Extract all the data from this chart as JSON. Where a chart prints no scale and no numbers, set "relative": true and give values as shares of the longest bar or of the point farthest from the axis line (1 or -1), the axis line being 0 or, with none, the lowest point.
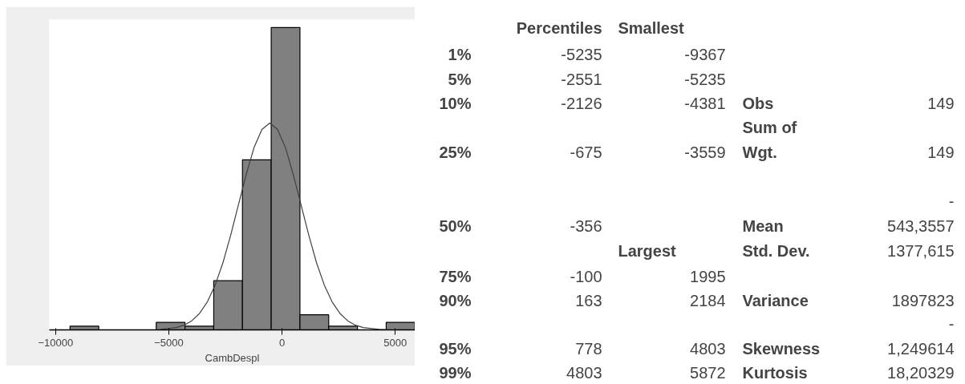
{
  "chart_data": [
    {
      "type": "histogram",
      "relative": true,
      "xlabel": "CambDespl",
      "color": "#808080",
      "bins": [
        -9367,
        -8097,
        -6827,
        -5557,
        -4287,
        -3017,
        -1748,
        -478,
        792,
        2062,
        3332,
        4602,
        5872
      ],
      "values": [
        0.0125,
        0,
        0,
        0.025,
        0.0125,
        0.1625,
        0.5625,
        1,
        0.05,
        0.0125,
        0,
        0.025
      ],
      "xlim": [
        -10280,
        5880
      ],
      "xticks": [
        -10000,
        -5000,
        0,
        5000
      ],
      "annotations": [
        "0"
      ],
      "series": [
        {
          "type": "line",
          "color": "#404040",
          "x": [
            -5366,
            -4677,
            -4333,
            -3988,
            -3644,
            -3299,
            -2955,
            -2610,
            -2266,
            -1921,
            -1577,
            -1232,
            -888,
            -543,
            -198,
            146,
            491,
            835,
            1180,
            1524,
            1869,
            2213,
            2558,
            2902,
            3247,
            3591,
            4280,
            4625
          ],
          "values": [
            0.0015,
            0.0076,
            0.0155,
            0.03,
            0.0545,
            0.0926,
            0.148,
            0.222,
            0.314,
            0.415,
            0.515,
            0.604,
            0.663,
            0.684,
            0.663,
            0.604,
            0.515,
            0.415,
            0.314,
            0.222,
            0.148,
            0.0926,
            0.0545,
            0.03,
            0.0155,
            0.0076,
            0.0015,
            0.0006
          ]
        }
      ]
    },
    {
      "type": "other",
      "annotations": [
        "Percentiles",
        "Smallest",
        "1%",
        "-5235",
        "-9367",
        "5%",
        "-2551",
        "-5235",
        "10%",
        "-2126",
        "-4381",
        "Obs",
        "149",
        "25%",
        "-675",
        "-3559",
        "Sum of\nWgt.",
        "149",
        "50%",
        "-356",
        "Mean",
        "-\n543,3557",
        "Largest",
        "Std. Dev.",
        "1377,615",
        "75%",
        "-100",
        "1995",
        "90%",
        "163",
        "2184",
        "Variance",
        "1897823",
        "95%",
        "778",
        "4803",
        "Skewness",
        "-\n1,249614",
        "99%",
        "4803",
        "5872",
        "Kurtosis",
        "18,20329"
      ]
    }
  ]
}
